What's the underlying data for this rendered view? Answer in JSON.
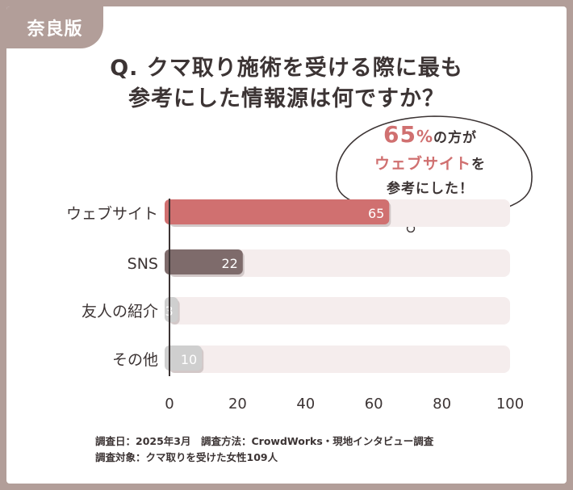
{
  "badge": "奈良版",
  "question": {
    "line1": "Q. クマ取り施術を受ける際に最も",
    "line2": "参考にした情報源は何ですか？"
  },
  "callout": {
    "percent_value": "65",
    "percent_sign": "%",
    "line1_rest": "の方が",
    "highlight": "ウェブサイト",
    "line2_rest": "を",
    "line3": "参考にした！"
  },
  "chart_data": {
    "type": "bar",
    "orientation": "horizontal",
    "categories": [
      "ウェブサイト",
      "SNS",
      "友人の紹介",
      "その他"
    ],
    "values": [
      65,
      22,
      3,
      10
    ],
    "xlim": [
      0,
      100
    ],
    "xticks": [
      "0",
      "20",
      "40",
      "60",
      "80",
      "100"
    ],
    "title": "",
    "xlabel": "",
    "ylabel": "",
    "grid": false,
    "colors": [
      "#d07070",
      "#7e6b6b",
      "#cfcfcf",
      "#cfcfcf"
    ],
    "track_color": "#f5eded"
  },
  "footer": {
    "line1": "調査日：2025年3月　調査方法：CrowdWorks・現地インタビュー調査",
    "line2": "調査対象：クマ取りを受けた女性109人"
  }
}
